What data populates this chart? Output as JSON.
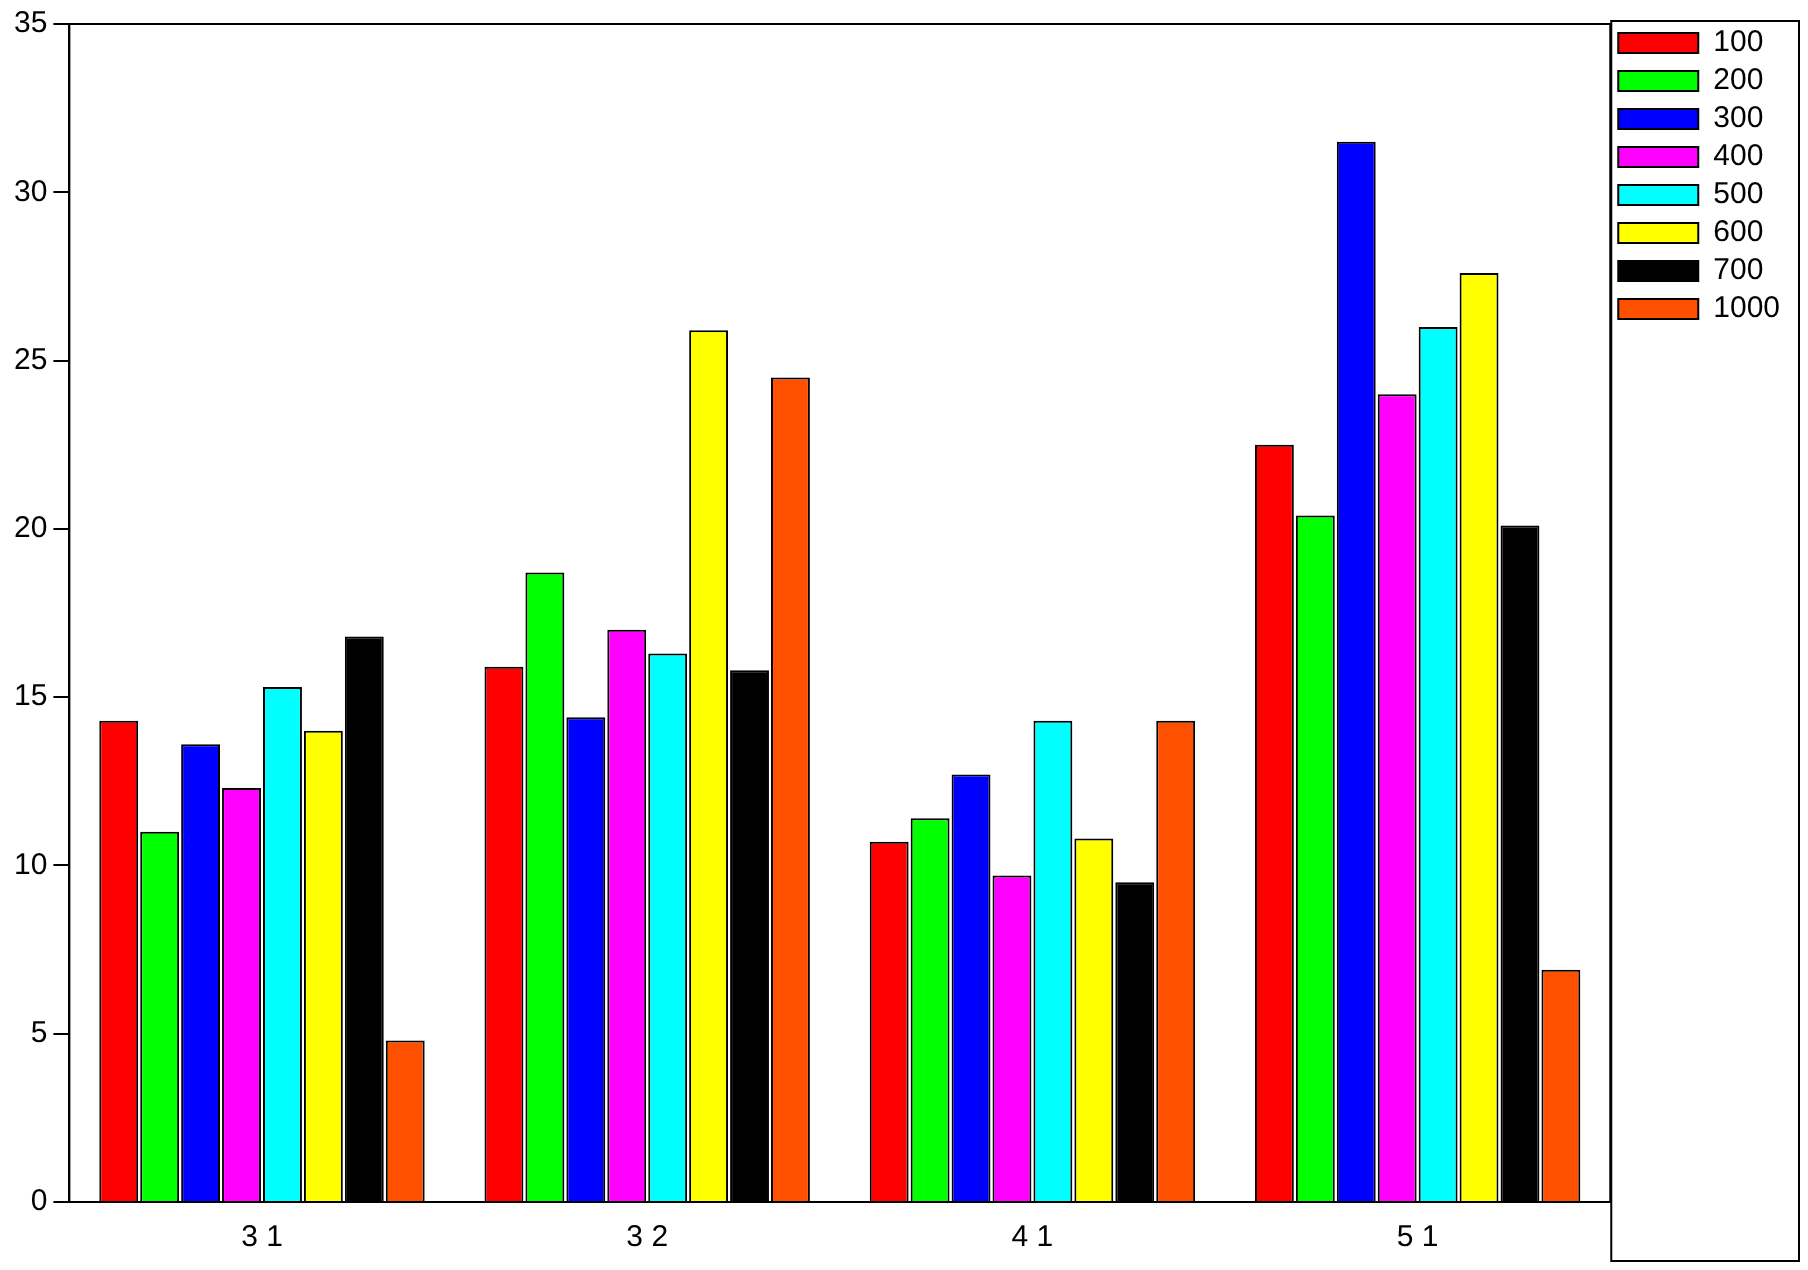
{
  "chart_data": {
    "type": "bar",
    "categories": [
      "3 1",
      "3 2",
      "4 1",
      "5 1"
    ],
    "series": [
      {
        "name": "100",
        "color": "#ff0000",
        "values": [
          14.3,
          15.9,
          10.7,
          22.5
        ]
      },
      {
        "name": "200",
        "color": "#00ff00",
        "values": [
          11.0,
          18.7,
          11.4,
          20.4
        ]
      },
      {
        "name": "300",
        "color": "#0000ff",
        "values": [
          13.6,
          14.4,
          12.7,
          31.5
        ]
      },
      {
        "name": "400",
        "color": "#ff00ff",
        "values": [
          12.3,
          17.0,
          9.7,
          24.0
        ]
      },
      {
        "name": "500",
        "color": "#00ffff",
        "values": [
          15.3,
          16.3,
          14.3,
          26.0
        ]
      },
      {
        "name": "600",
        "color": "#ffff00",
        "values": [
          14.0,
          25.9,
          10.8,
          27.6
        ]
      },
      {
        "name": "700",
        "color": "#000000",
        "values": [
          16.8,
          15.8,
          9.5,
          20.1
        ]
      },
      {
        "name": "1000",
        "color": "#ff5000",
        "values": [
          4.8,
          24.5,
          14.3,
          6.9
        ]
      }
    ],
    "ylim": [
      0,
      35
    ],
    "yticks": [
      0,
      5,
      10,
      15,
      20,
      25,
      30,
      35
    ],
    "grid": false,
    "legend": "top right"
  }
}
